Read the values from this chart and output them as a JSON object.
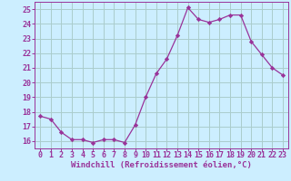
{
  "x": [
    0,
    1,
    2,
    3,
    4,
    5,
    6,
    7,
    8,
    9,
    10,
    11,
    12,
    13,
    14,
    15,
    16,
    17,
    18,
    19,
    20,
    21,
    22,
    23
  ],
  "y": [
    17.7,
    17.5,
    16.6,
    16.1,
    16.1,
    15.9,
    16.1,
    16.1,
    15.9,
    17.1,
    19.0,
    20.6,
    21.6,
    23.2,
    25.1,
    24.3,
    24.1,
    24.3,
    24.6,
    24.6,
    22.8,
    21.9,
    21.0,
    20.5
  ],
  "line_color": "#993399",
  "marker": "D",
  "markersize": 2.2,
  "linewidth": 0.9,
  "background_color": "#cceeff",
  "grid_color": "#aacccc",
  "xlabel": "Windchill (Refroidissement éolien,°C)",
  "xlabel_fontsize": 6.5,
  "xlabel_color": "#993399",
  "tick_color": "#993399",
  "tick_fontsize": 6.0,
  "ylim": [
    15.5,
    25.5
  ],
  "xlim": [
    -0.5,
    23.5
  ],
  "yticks": [
    16,
    17,
    18,
    19,
    20,
    21,
    22,
    23,
    24,
    25
  ],
  "xticks": [
    0,
    1,
    2,
    3,
    4,
    5,
    6,
    7,
    8,
    9,
    10,
    11,
    12,
    13,
    14,
    15,
    16,
    17,
    18,
    19,
    20,
    21,
    22,
    23
  ]
}
